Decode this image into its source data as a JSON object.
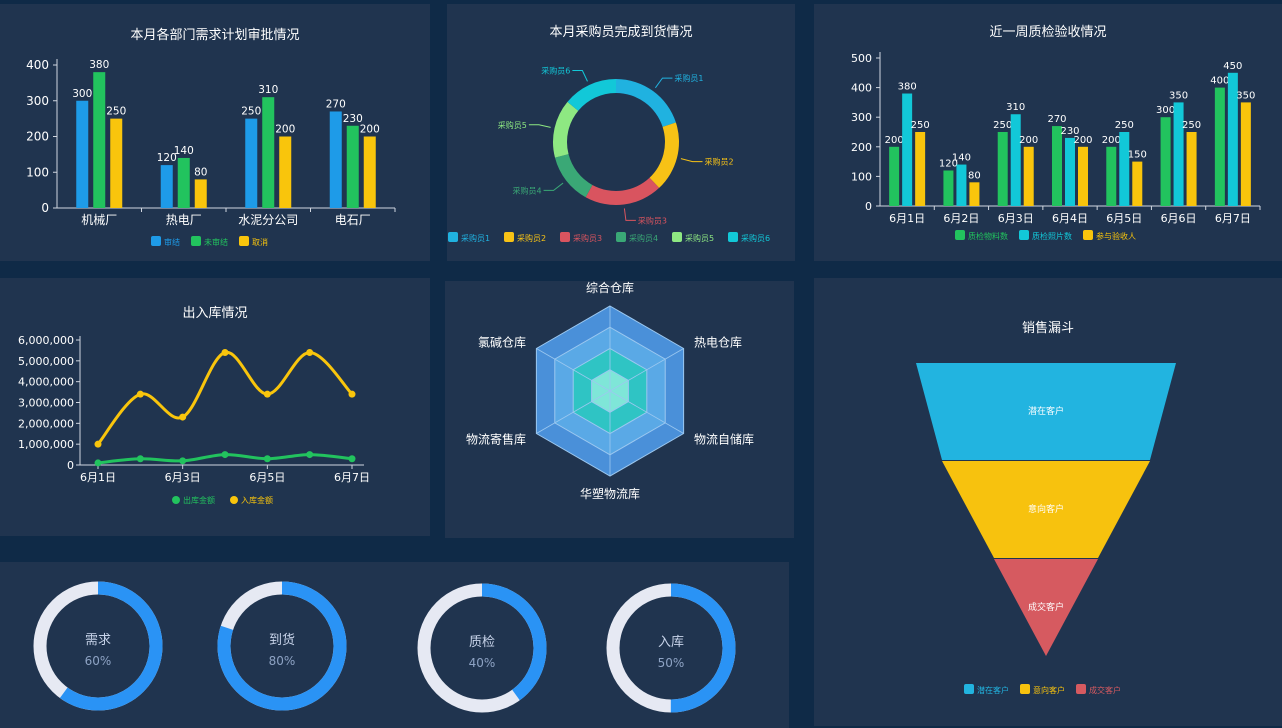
{
  "colors": {
    "bg": "#0f2a47",
    "panel": "#20344f",
    "blue": "#1e9be8",
    "green": "#22c35e",
    "yellow": "#f9c50c",
    "cyan": "#12c8d8",
    "ring_blue": "#2a93f5",
    "ring_track": "#e6e9f3"
  },
  "dept_chart": {
    "title": "本月各部门需求计划审批情况",
    "chart_data": {
      "type": "bar",
      "categories": [
        "机械厂",
        "热电厂",
        "水泥分公司",
        "电石厂"
      ],
      "series": [
        {
          "name": "审结",
          "values": [
            300,
            120,
            250,
            270
          ],
          "color": "#1e9be8"
        },
        {
          "name": "未审结",
          "values": [
            380,
            140,
            310,
            230
          ],
          "color": "#22c35e"
        },
        {
          "name": "取消",
          "values": [
            250,
            80,
            200,
            200
          ],
          "color": "#f9c50c"
        }
      ],
      "ylim": [
        0,
        400
      ],
      "yticks": [
        "0",
        "100",
        "200",
        "300",
        "400"
      ],
      "legend": "bottom"
    }
  },
  "buyer_chart": {
    "title": "本月采购员完成到货情况",
    "chart_data": {
      "type": "pie",
      "labels": [
        "采购员1",
        "采购员2",
        "采购员3",
        "采购员4",
        "采购员5",
        "采购员6"
      ],
      "values": [
        20,
        18,
        20,
        13,
        15,
        14
      ],
      "colors": [
        "#20b2e0",
        "#f7c216",
        "#d9545f",
        "#3aa876",
        "#8ee882",
        "#12c8d8"
      ],
      "legend": "bottom"
    }
  },
  "qc_chart": {
    "title": "近一周质检验收情况",
    "chart_data": {
      "type": "bar",
      "categories": [
        "6月1日",
        "6月2日",
        "6月3日",
        "6月4日",
        "6月5日",
        "6月6日",
        "6月7日"
      ],
      "series": [
        {
          "name": "质检物料数",
          "values": [
            200,
            120,
            250,
            270,
            200,
            300,
            400
          ],
          "color": "#22c35e"
        },
        {
          "name": "质检照片数",
          "values": [
            380,
            140,
            310,
            230,
            250,
            350,
            450
          ],
          "color": "#12c8d8"
        },
        {
          "name": "参与验收人",
          "values": [
            250,
            80,
            200,
            200,
            150,
            250,
            350
          ],
          "color": "#f9c50c"
        }
      ],
      "ylim": [
        0,
        500
      ],
      "yticks": [
        "0",
        "100",
        "200",
        "300",
        "400",
        "500"
      ],
      "legend": "bottom"
    }
  },
  "inout_chart": {
    "title": "出入库情况",
    "chart_data": {
      "type": "line",
      "x": [
        "6月1日",
        "6月2日",
        "6月3日",
        "6月4日",
        "6月5日",
        "6月6日",
        "6月7日"
      ],
      "xticks": [
        "6月1日",
        "6月3日",
        "6月5日",
        "6月7日"
      ],
      "series": [
        {
          "name": "出库金额",
          "values": [
            100000,
            300000,
            200000,
            500000,
            300000,
            500000,
            300000
          ],
          "color": "#22c35e"
        },
        {
          "name": "入库金额",
          "values": [
            1000000,
            3400000,
            2300000,
            5400000,
            3400000,
            5400000,
            3400000
          ],
          "color": "#f9c50c"
        }
      ],
      "ylim": [
        0,
        6000000
      ],
      "yticks": [
        "0",
        "1,000,000",
        "2,000,000",
        "3,000,000",
        "4,000,000",
        "5,000,000",
        "6,000,000"
      ],
      "legend": "bottom"
    }
  },
  "radar_chart": {
    "chart_data": {
      "type": "radar",
      "indicators": [
        "综合仓库",
        "热电仓库",
        "物流自储库",
        "华塑物流库",
        "物流寄售库",
        "氯碱仓库"
      ],
      "rings": 4
    }
  },
  "funnel_chart": {
    "title": "销售漏斗",
    "chart_data": {
      "type": "funnel",
      "labels": [
        "潜在客户",
        "意向客户",
        "成交客户"
      ],
      "values": [
        100,
        80,
        40
      ],
      "colors": [
        "#22b4e0",
        "#f7c20e",
        "#d65a60"
      ],
      "legend": "bottom"
    }
  },
  "progress": {
    "items": [
      {
        "label": "需求",
        "percent_text": "60%",
        "value": 0.6
      },
      {
        "label": "到货",
        "percent_text": "80%",
        "value": 0.8
      },
      {
        "label": "质检",
        "percent_text": "40%",
        "value": 0.4
      },
      {
        "label": "入库",
        "percent_text": "50%",
        "value": 0.5
      }
    ]
  }
}
